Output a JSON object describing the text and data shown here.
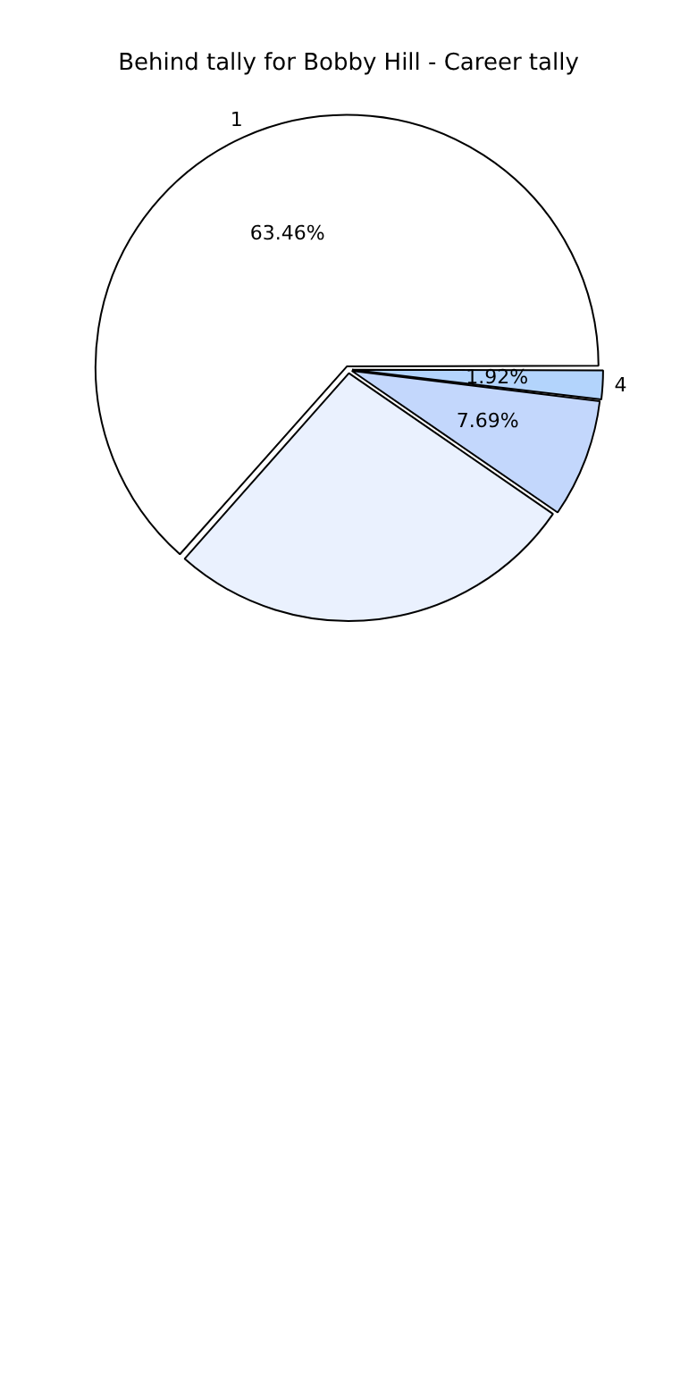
{
  "chart_data": {
    "type": "pie",
    "title": "Behind tally for Bobby Hill - Career tally",
    "categories": [
      "4",
      null,
      null,
      "1"
    ],
    "values": [
      1.92,
      7.69,
      26.92,
      63.46
    ],
    "value_labels": [
      "1.92%",
      "7.69%",
      null,
      "63.46%"
    ],
    "colors": [
      "#b3d4fc",
      "#c3d7fc",
      "#eaf1fe",
      "#ffffff"
    ],
    "legend": false
  }
}
